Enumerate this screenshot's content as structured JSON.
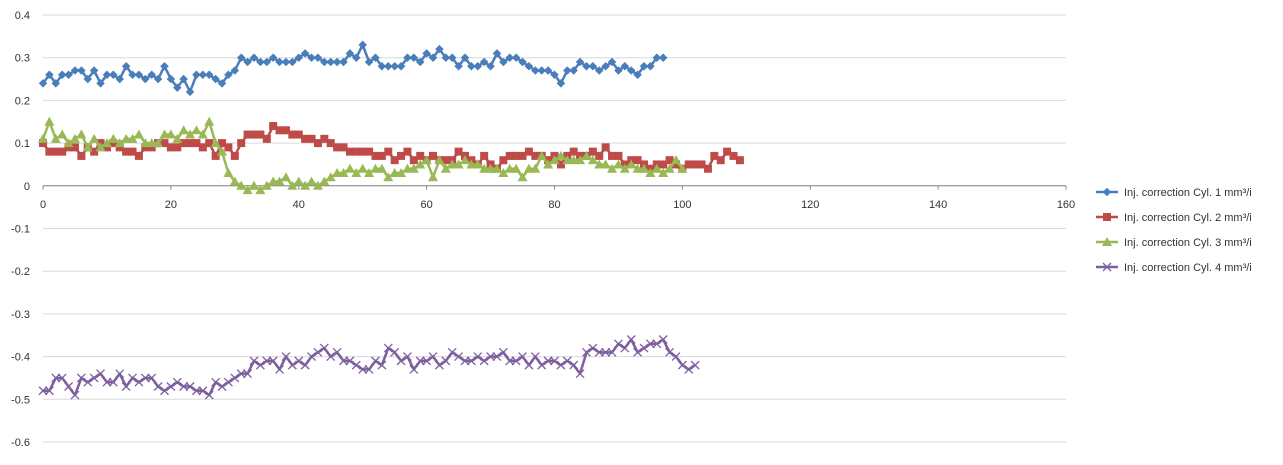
{
  "chart_data": {
    "type": "line",
    "title": "",
    "xlabel": "",
    "ylabel": "",
    "xlim": [
      0,
      160
    ],
    "ylim": [
      -0.6,
      0.4
    ],
    "x_ticks": [
      0,
      20,
      40,
      60,
      80,
      100,
      120,
      140,
      160
    ],
    "y_ticks": [
      0.4,
      0.3,
      0.2,
      0.1,
      0,
      -0.1,
      -0.2,
      -0.3,
      -0.4,
      -0.5,
      -0.6
    ],
    "x_tick_labels": [
      "0",
      "20",
      "40",
      "60",
      "80",
      "100",
      "120",
      "140",
      "160"
    ],
    "y_tick_labels": [
      "0.4",
      "0.3",
      "0.2",
      "0.1",
      "0",
      "-0.1",
      "-0.2",
      "-0.3",
      "-0.4",
      "-0.5",
      "-0.6"
    ],
    "grid": "horizontal",
    "legend_position": "right",
    "series": [
      {
        "name": "Inj. correction Cyl. 1 mm³/i",
        "color": "#4a7ebb",
        "marker": "diamond",
        "x_start": 0,
        "values": [
          0.24,
          0.26,
          0.24,
          0.26,
          0.26,
          0.27,
          0.27,
          0.25,
          0.27,
          0.24,
          0.26,
          0.26,
          0.25,
          0.28,
          0.26,
          0.26,
          0.25,
          0.26,
          0.25,
          0.28,
          0.25,
          0.23,
          0.25,
          0.22,
          0.26,
          0.26,
          0.26,
          0.25,
          0.24,
          0.26,
          0.27,
          0.3,
          0.29,
          0.3,
          0.29,
          0.29,
          0.3,
          0.29,
          0.29,
          0.29,
          0.3,
          0.31,
          0.3,
          0.3,
          0.29,
          0.29,
          0.29,
          0.29,
          0.31,
          0.3,
          0.33,
          0.29,
          0.3,
          0.28,
          0.28,
          0.28,
          0.28,
          0.3,
          0.3,
          0.29,
          0.31,
          0.3,
          0.32,
          0.3,
          0.3,
          0.28,
          0.3,
          0.28,
          0.28,
          0.29,
          0.28,
          0.31,
          0.29,
          0.3,
          0.3,
          0.29,
          0.28,
          0.27,
          0.27,
          0.27,
          0.26,
          0.24,
          0.27,
          0.27,
          0.29,
          0.28,
          0.28,
          0.27,
          0.28,
          0.29,
          0.27,
          0.28,
          0.27,
          0.26,
          0.28,
          0.28,
          0.3,
          0.3
        ]
      },
      {
        "name": "Inj. correction Cyl. 2 mm³/i",
        "color": "#be4b48",
        "marker": "square",
        "x_start": 0,
        "values": [
          0.1,
          0.08,
          0.08,
          0.08,
          0.09,
          0.09,
          0.07,
          0.09,
          0.08,
          0.1,
          0.09,
          0.1,
          0.09,
          0.08,
          0.08,
          0.07,
          0.09,
          0.09,
          0.1,
          0.1,
          0.09,
          0.09,
          0.1,
          0.1,
          0.1,
          0.09,
          0.1,
          0.07,
          0.1,
          0.09,
          0.07,
          0.1,
          0.12,
          0.12,
          0.12,
          0.11,
          0.14,
          0.13,
          0.13,
          0.12,
          0.12,
          0.11,
          0.11,
          0.1,
          0.11,
          0.1,
          0.09,
          0.09,
          0.08,
          0.08,
          0.08,
          0.08,
          0.07,
          0.07,
          0.08,
          0.06,
          0.07,
          0.08,
          0.06,
          0.07,
          0.06,
          0.07,
          0.06,
          0.06,
          0.06,
          0.08,
          0.07,
          0.06,
          0.05,
          0.07,
          0.05,
          0.04,
          0.06,
          0.07,
          0.07,
          0.07,
          0.08,
          0.07,
          0.07,
          0.06,
          0.07,
          0.05,
          0.07,
          0.08,
          0.07,
          0.07,
          0.08,
          0.07,
          0.09,
          0.07,
          0.07,
          0.05,
          0.06,
          0.06,
          0.05,
          0.04,
          0.05,
          0.05,
          0.06,
          0.05,
          0.04,
          0.05,
          0.05,
          0.05,
          0.04,
          0.07,
          0.06,
          0.08,
          0.07,
          0.06
        ]
      },
      {
        "name": "Inj. correction Cyl. 3 mm³/i",
        "color": "#98b954",
        "marker": "triangle",
        "x_start": 0,
        "values": [
          0.11,
          0.15,
          0.11,
          0.12,
          0.1,
          0.11,
          0.12,
          0.09,
          0.11,
          0.09,
          0.1,
          0.11,
          0.1,
          0.11,
          0.11,
          0.12,
          0.1,
          0.1,
          0.1,
          0.12,
          0.12,
          0.11,
          0.13,
          0.12,
          0.13,
          0.12,
          0.15,
          0.1,
          0.08,
          0.03,
          0.01,
          0.0,
          -0.01,
          0.0,
          -0.01,
          0.0,
          0.01,
          0.01,
          0.02,
          0.0,
          0.01,
          0.0,
          0.01,
          0.0,
          0.01,
          0.02,
          0.03,
          0.03,
          0.04,
          0.03,
          0.04,
          0.03,
          0.04,
          0.04,
          0.02,
          0.03,
          0.03,
          0.04,
          0.04,
          0.05,
          0.06,
          0.02,
          0.06,
          0.04,
          0.05,
          0.05,
          0.06,
          0.05,
          0.05,
          0.04,
          0.04,
          0.04,
          0.03,
          0.04,
          0.04,
          0.02,
          0.04,
          0.04,
          0.07,
          0.05,
          0.06,
          0.07,
          0.06,
          0.06,
          0.06,
          0.07,
          0.06,
          0.05,
          0.05,
          0.04,
          0.05,
          0.04,
          0.05,
          0.04,
          0.04,
          0.03,
          0.04,
          0.03,
          0.04,
          0.06,
          0.04
        ]
      },
      {
        "name": "Inj. correction Cyl. 4 mm³/i",
        "color": "#7d5fa0",
        "marker": "x",
        "x_start": 0,
        "values": [
          -0.48,
          -0.48,
          -0.45,
          -0.45,
          -0.47,
          -0.49,
          -0.45,
          -0.46,
          -0.45,
          -0.44,
          -0.46,
          -0.46,
          -0.44,
          -0.47,
          -0.45,
          -0.46,
          -0.45,
          -0.45,
          -0.47,
          -0.48,
          -0.47,
          -0.46,
          -0.47,
          -0.47,
          -0.48,
          -0.48,
          -0.49,
          -0.46,
          -0.47,
          -0.46,
          -0.45,
          -0.44,
          -0.44,
          -0.41,
          -0.42,
          -0.41,
          -0.41,
          -0.43,
          -0.4,
          -0.42,
          -0.41,
          -0.42,
          -0.4,
          -0.39,
          -0.38,
          -0.4,
          -0.39,
          -0.41,
          -0.41,
          -0.42,
          -0.43,
          -0.43,
          -0.41,
          -0.42,
          -0.38,
          -0.39,
          -0.41,
          -0.4,
          -0.43,
          -0.41,
          -0.41,
          -0.4,
          -0.42,
          -0.41,
          -0.39,
          -0.4,
          -0.41,
          -0.41,
          -0.4,
          -0.41,
          -0.4,
          -0.4,
          -0.39,
          -0.41,
          -0.41,
          -0.4,
          -0.42,
          -0.4,
          -0.42,
          -0.41,
          -0.41,
          -0.42,
          -0.41,
          -0.42,
          -0.44,
          -0.39,
          -0.38,
          -0.39,
          -0.39,
          -0.39,
          -0.37,
          -0.38,
          -0.36,
          -0.39,
          -0.38,
          -0.37,
          -0.37,
          -0.36,
          -0.39,
          -0.4,
          -0.42,
          -0.43,
          -0.42
        ]
      }
    ]
  }
}
